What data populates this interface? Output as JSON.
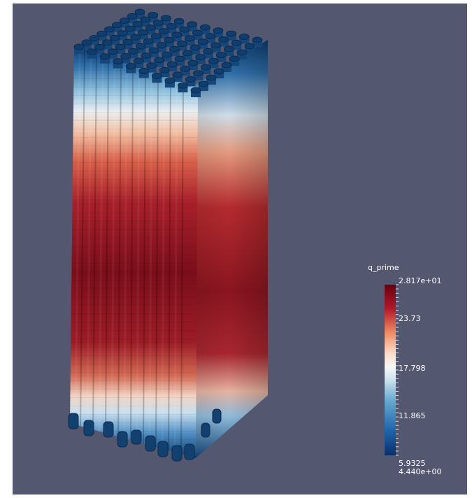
{
  "colorbar": {
    "title": "q_prime",
    "max_label": "2.817e+01",
    "min_label": "4.440e+00",
    "tick_labels": [
      "23.73",
      "17.798",
      "11.865",
      "5.9325"
    ],
    "range": [
      4.44,
      28.17
    ],
    "colormap": [
      "#08306b",
      "#2166ac",
      "#67a9cf",
      "#d1e5f0",
      "#f7f7f7",
      "#fddbc7",
      "#ef8a62",
      "#b2182b",
      "#67000d"
    ]
  },
  "colors": {
    "background": "#535870",
    "cap": "#0f3d6e"
  }
}
